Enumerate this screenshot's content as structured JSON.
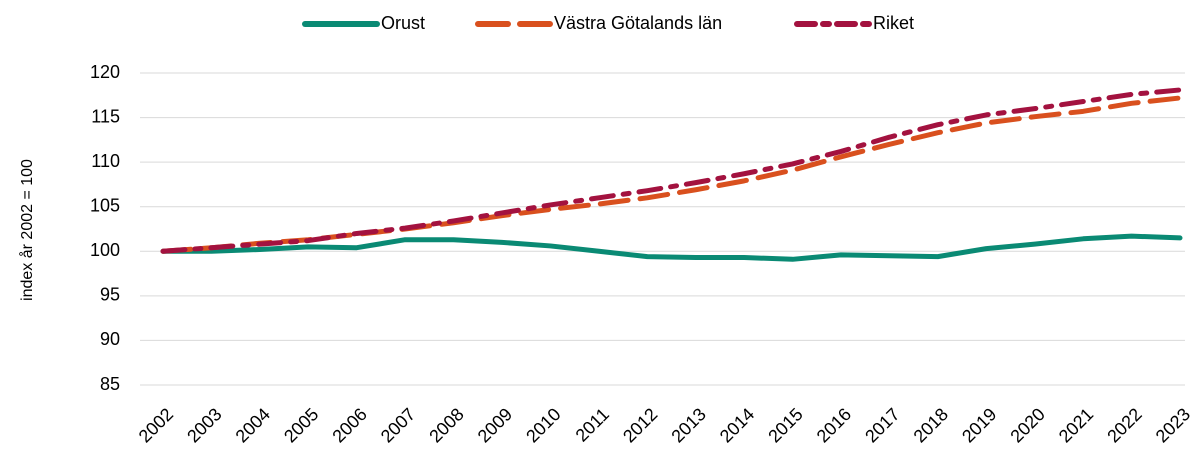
{
  "chart_data": {
    "type": "line",
    "y_label": "index år 2002 = 100",
    "categories": [
      "2002",
      "2003",
      "2004",
      "2005",
      "2006",
      "2007",
      "2008",
      "2009",
      "2010",
      "2011",
      "2012",
      "2013",
      "2014",
      "2015",
      "2016",
      "2017",
      "2018",
      "2019",
      "2020",
      "2021",
      "2022",
      "2023"
    ],
    "series": [
      {
        "name": "Orust",
        "color": "#0a8a74",
        "dash": "solid",
        "values": [
          100,
          100,
          100.2,
          100.5,
          100.4,
          101.3,
          101.3,
          101.0,
          100.6,
          100.0,
          99.4,
          99.3,
          99.3,
          99.1,
          99.6,
          99.5,
          99.4,
          100.3,
          100.8,
          101.4,
          101.7,
          101.5
        ]
      },
      {
        "name": "Västra Götalands län",
        "color": "#d9501e",
        "dash": "dashed",
        "values": [
          100,
          100.4,
          100.9,
          101.3,
          101.9,
          102.5,
          103.2,
          104.0,
          104.7,
          105.3,
          106.0,
          106.9,
          107.9,
          109.1,
          110.6,
          112.0,
          113.3,
          114.4,
          115.1,
          115.7,
          116.6,
          117.2
        ]
      },
      {
        "name": "Riket",
        "color": "#a3123f",
        "dash": "dotdash",
        "values": [
          100,
          100.4,
          100.8,
          101.2,
          102.0,
          102.6,
          103.4,
          104.3,
          105.2,
          106.0,
          106.8,
          107.7,
          108.7,
          109.8,
          111.2,
          112.8,
          114.2,
          115.3,
          116.0,
          116.8,
          117.6,
          118.1
        ]
      }
    ],
    "ylim": [
      85,
      120
    ],
    "yticks": [
      85,
      90,
      95,
      100,
      105,
      110,
      115,
      120
    ],
    "grid": true,
    "legend": "top"
  }
}
